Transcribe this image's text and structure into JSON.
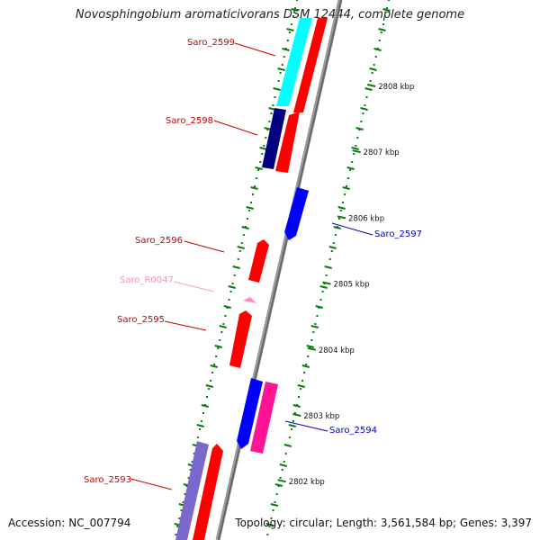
{
  "title": "Novosphingobium aromaticivorans DSM 12444, complete genome",
  "footer": {
    "accession": "Accession: NC_007794",
    "summary": "Topology: circular; Length: 3,561,584 bp; Genes: 3,397"
  },
  "colors": {
    "cds_red": "#ff0000",
    "cyan": "#00ffff",
    "navy": "#000080",
    "blue": "#0000ff",
    "magenta": "#ff1493",
    "purple": "#7b68cc",
    "rna_pink": "#ff99cc",
    "backbone": "#888888",
    "tick_green": "#0a7a0a"
  },
  "scale": {
    "unit": "kbp",
    "ticks": [
      {
        "kbp": 2808,
        "label": "2808 kbp"
      },
      {
        "kbp": 2807,
        "label": "2807 kbp"
      },
      {
        "kbp": 2806,
        "label": "2806 kbp"
      },
      {
        "kbp": 2805,
        "label": "2805 kbp"
      },
      {
        "kbp": 2804,
        "label": "2804 kbp"
      },
      {
        "kbp": 2803,
        "label": "2803 kbp"
      },
      {
        "kbp": 2802,
        "label": "2802 kbp"
      }
    ]
  },
  "gene_labels": [
    {
      "name": "Saro_2599",
      "color": "#cc0000"
    },
    {
      "name": "Saro_2598",
      "color": "#cc0000"
    },
    {
      "name": "Saro_2597",
      "color": "#0000cc"
    },
    {
      "name": "Saro_2596",
      "color": "#cc0000"
    },
    {
      "name": "Saro_R0047",
      "color": "#ff88bb"
    },
    {
      "name": "Saro_2595",
      "color": "#cc0000"
    },
    {
      "name": "Saro_2594",
      "color": "#0000cc"
    },
    {
      "name": "Saro_2593",
      "color": "#cc0000"
    }
  ]
}
